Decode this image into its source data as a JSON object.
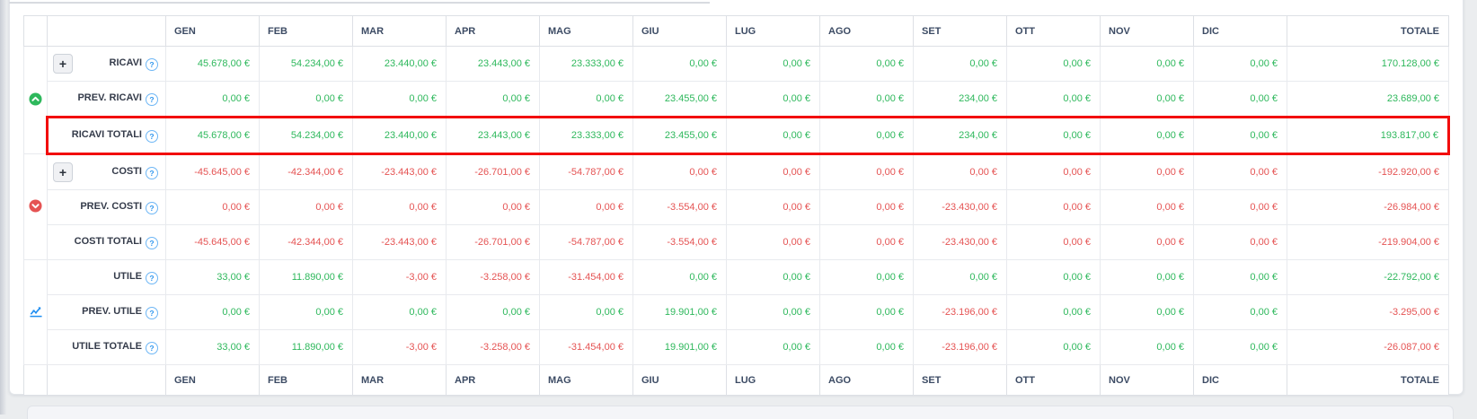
{
  "colors": {
    "positive": "#2eb85c",
    "negative": "#e55353",
    "highlight_border": "#f20d0d",
    "group_up": "#2eb85c",
    "group_down": "#e55353",
    "group_chart": "#1f8ef1"
  },
  "table": {
    "months": [
      "GEN",
      "FEB",
      "MAR",
      "APR",
      "MAG",
      "GIU",
      "LUG",
      "AGO",
      "SET",
      "OTT",
      "NOV",
      "DIC"
    ],
    "total_label": "TOTALE",
    "expand_label": "+",
    "help_glyph": "?",
    "groups": [
      {
        "icon": "circle-chevron-up-icon",
        "icon_color": "#2eb85c",
        "rows": [
          {
            "label": "RICAVI",
            "expand": true,
            "highlight": false,
            "values": [
              "45.678,00 €",
              "54.234,00 €",
              "23.440,00 €",
              "23.443,00 €",
              "23.333,00 €",
              "0,00 €",
              "0,00 €",
              "0,00 €",
              "0,00 €",
              "0,00 €",
              "0,00 €",
              "0,00 €",
              "170.128,00 €"
            ],
            "tones": [
              "p",
              "p",
              "p",
              "p",
              "p",
              "p",
              "p",
              "p",
              "p",
              "p",
              "p",
              "p",
              "p"
            ]
          },
          {
            "label": "PREV. RICAVI",
            "expand": false,
            "highlight": false,
            "values": [
              "0,00 €",
              "0,00 €",
              "0,00 €",
              "0,00 €",
              "0,00 €",
              "23.455,00 €",
              "0,00 €",
              "0,00 €",
              "234,00 €",
              "0,00 €",
              "0,00 €",
              "0,00 €",
              "23.689,00 €"
            ],
            "tones": [
              "p",
              "p",
              "p",
              "p",
              "p",
              "p",
              "p",
              "p",
              "p",
              "p",
              "p",
              "p",
              "p"
            ]
          },
          {
            "label": "RICAVI TOTALI",
            "expand": false,
            "highlight": true,
            "values": [
              "45.678,00 €",
              "54.234,00 €",
              "23.440,00 €",
              "23.443,00 €",
              "23.333,00 €",
              "23.455,00 €",
              "0,00 €",
              "0,00 €",
              "234,00 €",
              "0,00 €",
              "0,00 €",
              "0,00 €",
              "193.817,00 €"
            ],
            "tones": [
              "p",
              "p",
              "p",
              "p",
              "p",
              "p",
              "p",
              "p",
              "p",
              "p",
              "p",
              "p",
              "p"
            ]
          }
        ]
      },
      {
        "icon": "circle-chevron-down-icon",
        "icon_color": "#e55353",
        "rows": [
          {
            "label": "COSTI",
            "expand": true,
            "highlight": false,
            "values": [
              "-45.645,00 €",
              "-42.344,00 €",
              "-23.443,00 €",
              "-26.701,00 €",
              "-54.787,00 €",
              "0,00 €",
              "0,00 €",
              "0,00 €",
              "0,00 €",
              "0,00 €",
              "0,00 €",
              "0,00 €",
              "-192.920,00 €"
            ],
            "tones": [
              "n",
              "n",
              "n",
              "n",
              "n",
              "n",
              "n",
              "n",
              "n",
              "n",
              "n",
              "n",
              "n"
            ]
          },
          {
            "label": "PREV. COSTI",
            "expand": false,
            "highlight": false,
            "values": [
              "0,00 €",
              "0,00 €",
              "0,00 €",
              "0,00 €",
              "0,00 €",
              "-3.554,00 €",
              "0,00 €",
              "0,00 €",
              "-23.430,00 €",
              "0,00 €",
              "0,00 €",
              "0,00 €",
              "-26.984,00 €"
            ],
            "tones": [
              "n",
              "n",
              "n",
              "n",
              "n",
              "n",
              "n",
              "n",
              "n",
              "n",
              "n",
              "n",
              "n"
            ]
          },
          {
            "label": "COSTI TOTALI",
            "expand": false,
            "highlight": false,
            "values": [
              "-45.645,00 €",
              "-42.344,00 €",
              "-23.443,00 €",
              "-26.701,00 €",
              "-54.787,00 €",
              "-3.554,00 €",
              "0,00 €",
              "0,00 €",
              "-23.430,00 €",
              "0,00 €",
              "0,00 €",
              "0,00 €",
              "-219.904,00 €"
            ],
            "tones": [
              "n",
              "n",
              "n",
              "n",
              "n",
              "n",
              "n",
              "n",
              "n",
              "n",
              "n",
              "n",
              "n"
            ]
          }
        ]
      },
      {
        "icon": "chart-line-icon",
        "icon_color": "#1f8ef1",
        "rows": [
          {
            "label": "UTILE",
            "expand": false,
            "highlight": false,
            "values": [
              "33,00 €",
              "11.890,00 €",
              "-3,00 €",
              "-3.258,00 €",
              "-31.454,00 €",
              "0,00 €",
              "0,00 €",
              "0,00 €",
              "0,00 €",
              "0,00 €",
              "0,00 €",
              "0,00 €",
              "-22.792,00 €"
            ],
            "tones": [
              "p",
              "p",
              "n",
              "n",
              "n",
              "p",
              "p",
              "p",
              "p",
              "p",
              "p",
              "p",
              "p"
            ]
          },
          {
            "label": "PREV. UTILE",
            "expand": false,
            "highlight": false,
            "values": [
              "0,00 €",
              "0,00 €",
              "0,00 €",
              "0,00 €",
              "0,00 €",
              "19.901,00 €",
              "0,00 €",
              "0,00 €",
              "-23.196,00 €",
              "0,00 €",
              "0,00 €",
              "0,00 €",
              "-3.295,00 €"
            ],
            "tones": [
              "p",
              "p",
              "p",
              "p",
              "p",
              "p",
              "p",
              "p",
              "n",
              "p",
              "p",
              "p",
              "n"
            ]
          },
          {
            "label": "UTILE TOTALE",
            "expand": false,
            "highlight": false,
            "values": [
              "33,00 €",
              "11.890,00 €",
              "-3,00 €",
              "-3.258,00 €",
              "-31.454,00 €",
              "19.901,00 €",
              "0,00 €",
              "0,00 €",
              "-23.196,00 €",
              "0,00 €",
              "0,00 €",
              "0,00 €",
              "-26.087,00 €"
            ],
            "tones": [
              "p",
              "p",
              "n",
              "n",
              "n",
              "p",
              "p",
              "p",
              "n",
              "p",
              "p",
              "p",
              "n"
            ]
          }
        ]
      }
    ]
  }
}
